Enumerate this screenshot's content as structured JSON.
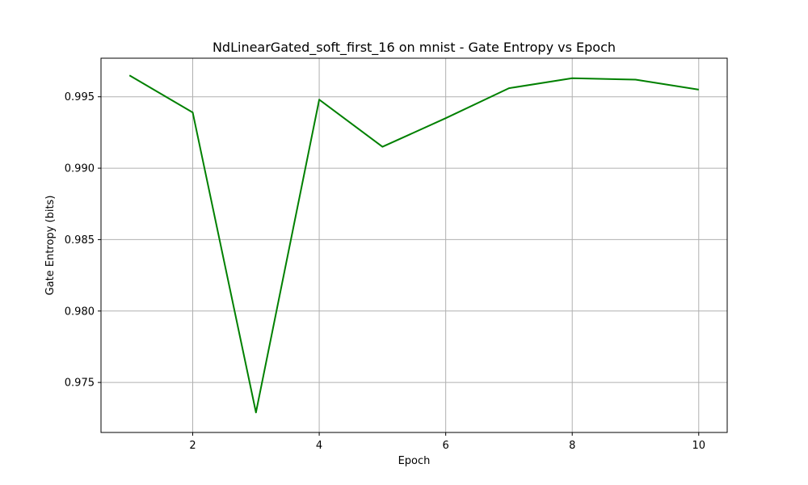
{
  "chart_data": {
    "type": "line",
    "title": "NdLinearGated_soft_first_16 on mnist - Gate Entropy vs Epoch",
    "xlabel": "Epoch",
    "ylabel": "Gate Entropy (bits)",
    "xlim": [
      0.55,
      10.45
    ],
    "ylim": [
      0.9715,
      0.9977
    ],
    "xticks": [
      2,
      4,
      6,
      8,
      10
    ],
    "xtick_labels": [
      "2",
      "4",
      "6",
      "8",
      "10"
    ],
    "yticks": [
      0.975,
      0.98,
      0.985,
      0.99,
      0.995
    ],
    "ytick_labels": [
      "0.975",
      "0.980",
      "0.985",
      "0.990",
      "0.995"
    ],
    "grid": true,
    "series": [
      {
        "color": "#008000",
        "x": [
          1,
          2,
          3,
          4,
          5,
          6,
          7,
          8,
          9,
          10
        ],
        "values": [
          0.9965,
          0.9939,
          0.9729,
          0.9948,
          0.9915,
          0.9935,
          0.9956,
          0.9963,
          0.9962,
          0.9955
        ]
      }
    ]
  }
}
